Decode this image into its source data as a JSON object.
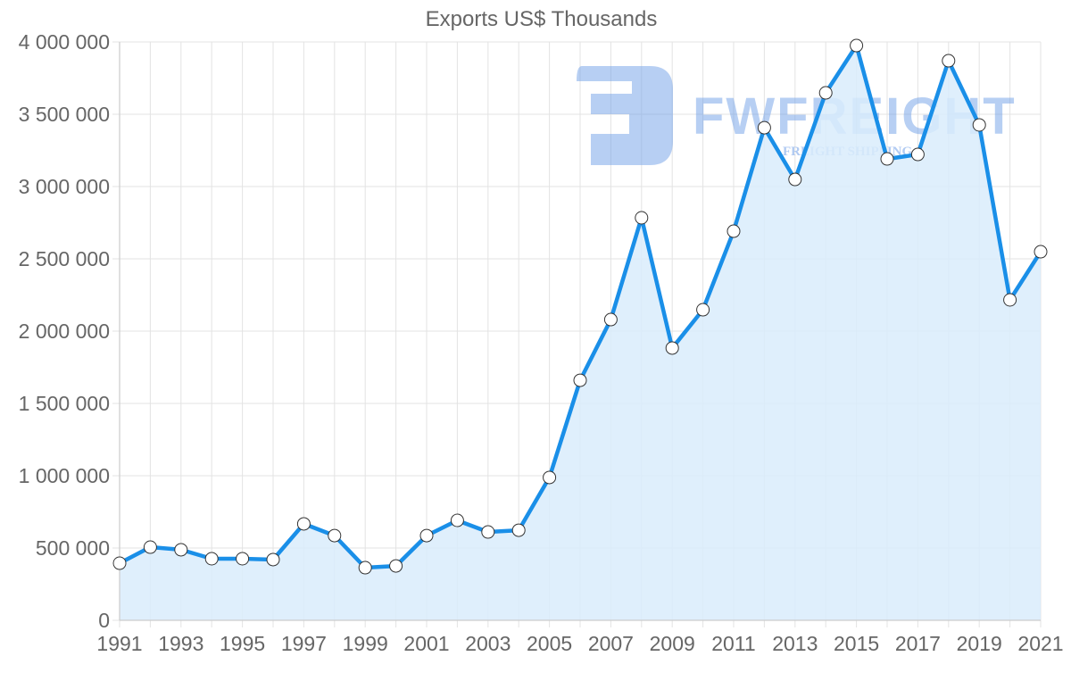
{
  "chart_data": {
    "type": "line",
    "title": "Exports US$ Thousands",
    "xlabel": "",
    "ylabel": "",
    "ylim": [
      0,
      4000000
    ],
    "grid": true,
    "legend": null,
    "area_fill": true,
    "x": [
      1991,
      1992,
      1993,
      1994,
      1995,
      1996,
      1997,
      1998,
      1999,
      2000,
      2001,
      2002,
      2003,
      2004,
      2005,
      2006,
      2007,
      2008,
      2009,
      2010,
      2011,
      2012,
      2013,
      2014,
      2015,
      2016,
      2017,
      2018,
      2019,
      2020,
      2021
    ],
    "series": [
      {
        "name": "Exports US$ Thousands",
        "values": [
          395000,
          506000,
          488000,
          426000,
          426000,
          420000,
          667000,
          586000,
          364000,
          376000,
          586000,
          691000,
          611000,
          623000,
          988000,
          1660000,
          2080000,
          2784000,
          1883000,
          2148000,
          2691000,
          3407000,
          3049000,
          3648000,
          3975000,
          3191000,
          3222000,
          3870000,
          3426000,
          2216000,
          2549000
        ]
      }
    ],
    "y_ticks": [
      "0",
      "500 000",
      "1 000 000",
      "1 500 000",
      "2 000 000",
      "2 500 000",
      "3 000 000",
      "3 500 000",
      "4 000 000"
    ],
    "y_tick_values": [
      0,
      500000,
      1000000,
      1500000,
      2000000,
      2500000,
      3000000,
      3500000,
      4000000
    ],
    "x_tick_labels": [
      "1991",
      "1993",
      "1995",
      "1997",
      "1999",
      "2001",
      "2003",
      "2005",
      "2007",
      "2009",
      "2011",
      "2013",
      "2015",
      "2017",
      "2019",
      "2021"
    ]
  },
  "colors": {
    "line": "#1a8fe8",
    "fill": "#d9ecfc",
    "grid": "#e3e3e3",
    "axis": "#cccccc",
    "text": "#666666",
    "point_fill": "#ffffff",
    "point_stroke": "#333333",
    "watermark": "#6f9fe8"
  },
  "watermark": {
    "brand": "FWFREIGHT",
    "tagline": "FREIGHT SHIPPING"
  }
}
